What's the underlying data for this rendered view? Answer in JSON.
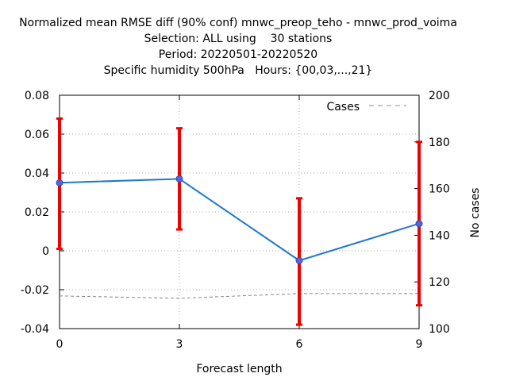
{
  "chart_data": {
    "type": "line",
    "title_lines": [
      "Normalized mean RMSE diff (90% conf) mnwc_preop_teho - mnwc_prod_voima",
      "Selection: ALL using    30 stations",
      "Period: 20220501-20220520",
      "Specific humidity 500hPa   Hours: {00,03,...,21}"
    ],
    "xlabel": "Forecast length",
    "ylabel": "",
    "y2label": "No cases",
    "x": [
      0,
      3,
      6,
      9
    ],
    "xlim": [
      0,
      9
    ],
    "ylim": [
      -0.04,
      0.08
    ],
    "y2lim": [
      100,
      200
    ],
    "x_ticks": [
      "0",
      "3",
      "6",
      "9"
    ],
    "y_ticks": [
      "-0.04",
      "-0.02",
      "0",
      "0.02",
      "0.04",
      "0.06",
      "0.08"
    ],
    "y2_ticks": [
      "100",
      "120",
      "140",
      "160",
      "180",
      "200"
    ],
    "grid": true,
    "legend_position": "top-right",
    "series": [
      {
        "style": "line+points",
        "color": "#1f77d4",
        "marker_color": "#5566cc",
        "values": [
          0.035,
          0.037,
          -0.005,
          0.014
        ],
        "ci_low": [
          0.001,
          0.011,
          -0.038,
          -0.028
        ],
        "ci_high": [
          0.068,
          0.063,
          0.027,
          0.056
        ],
        "errorbar_color": "#ee0000"
      },
      {
        "name": "Cases",
        "axis": "y2",
        "style": "dashed",
        "color": "#888888",
        "values": [
          114,
          113,
          115,
          115
        ]
      }
    ]
  }
}
